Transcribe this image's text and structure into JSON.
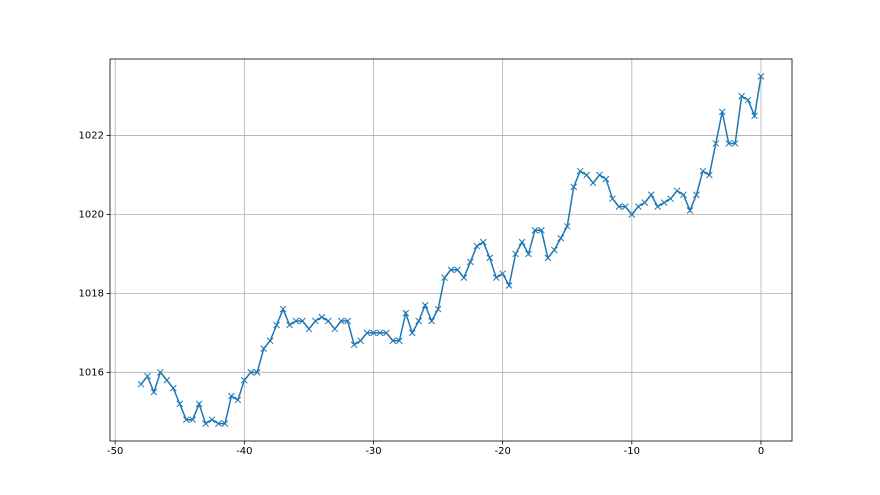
{
  "chart_data": {
    "type": "line",
    "x": [
      -48,
      -47.5,
      -47,
      -46.5,
      -46,
      -45.5,
      -45,
      -44.5,
      -44,
      -43.5,
      -43,
      -42.5,
      -42,
      -41.5,
      -41,
      -40.5,
      -40,
      -39.5,
      -39,
      -38.5,
      -38,
      -37.5,
      -37,
      -36.5,
      -36,
      -35.5,
      -35,
      -34.5,
      -34,
      -33.5,
      -33,
      -32.5,
      -32,
      -31.5,
      -31,
      -30.5,
      -30,
      -29.5,
      -29,
      -28.5,
      -28,
      -27.5,
      -27,
      -26.5,
      -26,
      -25.5,
      -25,
      -24.5,
      -24,
      -23.5,
      -23,
      -22.5,
      -22,
      -21.5,
      -21,
      -20.5,
      -20,
      -19.5,
      -19,
      -18.5,
      -18,
      -17.5,
      -17,
      -16.5,
      -16,
      -15.5,
      -15,
      -14.5,
      -14,
      -13.5,
      -13,
      -12.5,
      -12,
      -11.5,
      -11,
      -10.5,
      -10,
      -9.5,
      -9,
      -8.5,
      -8,
      -7.5,
      -7,
      -6.5,
      -6,
      -5.5,
      -5,
      -4.5,
      -4,
      -3.5,
      -3,
      -2.5,
      -2,
      -1.5,
      -1,
      -0.5,
      0
    ],
    "series": [
      {
        "color": "#1f77b4",
        "marker": "x",
        "values": [
          1015.7,
          1015.9,
          1015.5,
          1016.0,
          1015.8,
          1015.6,
          1015.2,
          1014.8,
          1014.8,
          1015.2,
          1014.7,
          1014.8,
          1014.7,
          1014.7,
          1015.4,
          1015.3,
          1015.8,
          1016.0,
          1016.0,
          1016.6,
          1016.8,
          1017.2,
          1017.6,
          1017.2,
          1017.3,
          1017.3,
          1017.1,
          1017.3,
          1017.4,
          1017.3,
          1017.1,
          1017.3,
          1017.3,
          1016.7,
          1016.8,
          1017.0,
          1017.0,
          1017.0,
          1017.0,
          1016.8,
          1016.8,
          1017.5,
          1017.0,
          1017.3,
          1017.7,
          1017.3,
          1017.6,
          1018.4,
          1018.6,
          1018.6,
          1018.4,
          1018.8,
          1019.2,
          1019.3,
          1018.9,
          1018.4,
          1018.5,
          1018.2,
          1019.0,
          1019.3,
          1019.0,
          1019.6,
          1019.6,
          1018.9,
          1019.1,
          1019.4,
          1019.7,
          1020.7,
          1021.1,
          1021.0,
          1020.8,
          1021.0,
          1020.9,
          1020.4,
          1020.2,
          1020.2,
          1020.0,
          1020.2,
          1020.3,
          1020.5,
          1020.2,
          1020.3,
          1020.4,
          1020.6,
          1020.5,
          1020.1,
          1020.5,
          1021.1,
          1021.0,
          1021.8,
          1022.6,
          1021.8,
          1021.8,
          1023.0,
          1022.9,
          1022.5,
          1023.5
        ]
      }
    ],
    "xlim": [
      -50.4,
      2.4
    ],
    "xticks": [
      -50,
      -40,
      -30,
      -20,
      -10,
      0
    ],
    "ylim": [
      1014.26,
      1023.94
    ],
    "yticks": [
      1016,
      1018,
      1020,
      1022
    ],
    "grid": true
  }
}
